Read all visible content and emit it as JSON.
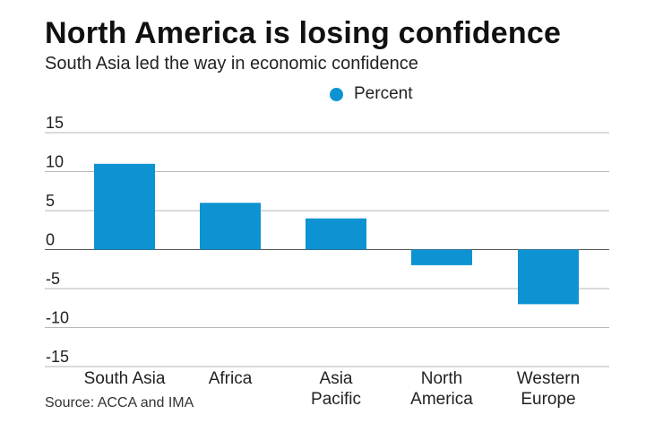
{
  "chart_data": {
    "type": "bar",
    "title": "North America is losing confidence",
    "subtitle": "South Asia led the way in economic confidence",
    "legend": {
      "label": "Percent",
      "position": "top-center"
    },
    "categories": [
      [
        "South Asia"
      ],
      [
        "Africa"
      ],
      [
        "Asia",
        "Pacific"
      ],
      [
        "North",
        "America"
      ],
      [
        "Western",
        "Europe"
      ]
    ],
    "series": [
      {
        "name": "Percent",
        "values": [
          11,
          6,
          4,
          -2,
          -7
        ]
      }
    ],
    "yticks": [
      15,
      10,
      5,
      0,
      -5,
      -10,
      -15
    ],
    "ytick_labels": [
      "15",
      "10",
      "5",
      "0",
      "-5",
      "-10",
      "-15"
    ],
    "ylim": [
      -15,
      15
    ],
    "xlabel": "",
    "ylabel": "",
    "grid": true,
    "source": "Source: ACCA and IMA",
    "colors": {
      "bar": "#0d93d2",
      "grid": "#b5b5b5",
      "zero": "#555555"
    }
  }
}
